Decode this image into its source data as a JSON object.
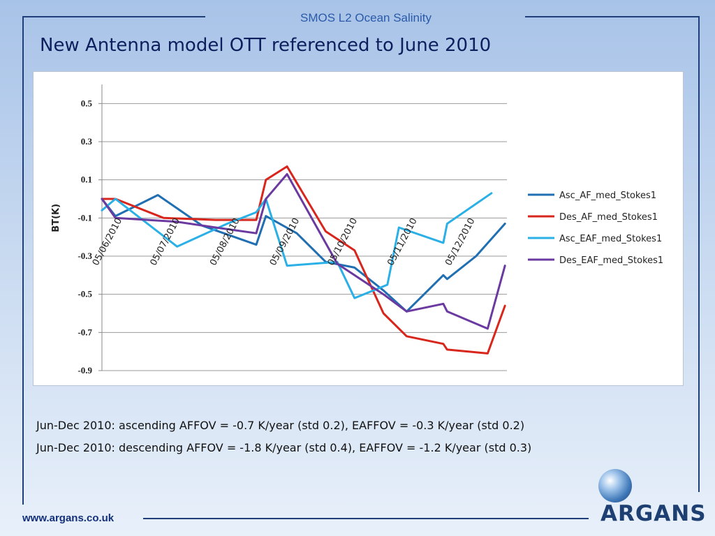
{
  "header": {
    "title": "SMOS L2 Ocean Salinity"
  },
  "slide_title": "New Antenna model OTT referenced to June 2010",
  "notes": [
    "Jun-Dec 2010: ascending AFFOV = -0.7 K/year (std 0.2), EAFFOV = -0.3 K/year (std 0.2)",
    "Jun-Dec 2010: descending AFFOV = -1.8 K/year (std 0.4), EAFFOV = -1.2 K/year (std 0.3)"
  ],
  "footer": {
    "url": "www.argans.co.uk",
    "logo_text": "ARGANS"
  },
  "chart_data": {
    "type": "line",
    "ylabel": "BT(K)",
    "ylim": [
      -0.9,
      0.6
    ],
    "yticks": [
      0.5,
      0.3,
      0.1,
      -0.1,
      -0.3,
      -0.5,
      -0.7,
      -0.9
    ],
    "ytick_labels": [
      "0.5",
      "0.3",
      "0.1",
      "-0.1",
      "-0.3",
      "-0.5",
      "-0.7",
      "-0.9"
    ],
    "xlim": [
      "2010-06-01",
      "2010-12-28"
    ],
    "xtick_dates": [
      "2010-06-05",
      "2010-07-05",
      "2010-08-05",
      "2010-09-05",
      "2010-10-05",
      "2010-11-05",
      "2010-12-05"
    ],
    "xtick_labels": [
      "05/06/2010",
      "05/07/2010",
      "05/08/2010",
      "05/09/2010",
      "05/10/2010",
      "05/11/2010",
      "05/12/2010"
    ],
    "grid": "horizontal",
    "legend_position": "right",
    "series": [
      {
        "name": "Asc_AF_med_Stokes1",
        "color": "#1f6fb2",
        "points": [
          [
            "2010-06-01",
            0.0
          ],
          [
            "2010-06-08",
            -0.09
          ],
          [
            "2010-06-30",
            0.02
          ],
          [
            "2010-07-23",
            -0.14
          ],
          [
            "2010-08-20",
            -0.24
          ],
          [
            "2010-08-25",
            -0.09
          ],
          [
            "2010-09-10",
            -0.18
          ],
          [
            "2010-09-25",
            -0.33
          ],
          [
            "2010-10-10",
            -0.36
          ],
          [
            "2010-10-25",
            -0.48
          ],
          [
            "2010-11-06",
            -0.59
          ],
          [
            "2010-11-25",
            -0.4
          ],
          [
            "2010-11-27",
            -0.42
          ],
          [
            "2010-12-12",
            -0.3
          ],
          [
            "2010-12-27",
            -0.13
          ]
        ]
      },
      {
        "name": "Des_AF_med_Stokes1",
        "color": "#d9261c",
        "points": [
          [
            "2010-06-01",
            0.0
          ],
          [
            "2010-06-08",
            0.0
          ],
          [
            "2010-07-03",
            -0.1
          ],
          [
            "2010-07-30",
            -0.11
          ],
          [
            "2010-08-20",
            -0.11
          ],
          [
            "2010-08-25",
            0.1
          ],
          [
            "2010-09-05",
            0.17
          ],
          [
            "2010-09-25",
            -0.17
          ],
          [
            "2010-10-10",
            -0.27
          ],
          [
            "2010-10-25",
            -0.6
          ],
          [
            "2010-11-06",
            -0.72
          ],
          [
            "2010-11-25",
            -0.76
          ],
          [
            "2010-11-27",
            -0.79
          ],
          [
            "2010-12-18",
            -0.81
          ],
          [
            "2010-12-27",
            -0.56
          ]
        ]
      },
      {
        "name": "Asc_EAF_med_Stokes1",
        "color": "#2ab0e6",
        "points": [
          [
            "2010-06-01",
            -0.06
          ],
          [
            "2010-06-08",
            0.0
          ],
          [
            "2010-07-10",
            -0.25
          ],
          [
            "2010-08-05",
            -0.13
          ],
          [
            "2010-08-20",
            -0.07
          ],
          [
            "2010-08-25",
            0.0
          ],
          [
            "2010-09-05",
            -0.35
          ],
          [
            "2010-10-01",
            -0.33
          ],
          [
            "2010-10-10",
            -0.52
          ],
          [
            "2010-10-27",
            -0.45
          ],
          [
            "2010-11-02",
            -0.15
          ],
          [
            "2010-11-25",
            -0.23
          ],
          [
            "2010-11-27",
            -0.13
          ],
          [
            "2010-12-20",
            0.03
          ]
        ]
      },
      {
        "name": "Des_EAF_med_Stokes1",
        "color": "#6b3aa0",
        "points": [
          [
            "2010-06-01",
            0.0
          ],
          [
            "2010-06-08",
            -0.1
          ],
          [
            "2010-07-10",
            -0.12
          ],
          [
            "2010-07-30",
            -0.15
          ],
          [
            "2010-08-20",
            -0.18
          ],
          [
            "2010-08-25",
            0.0
          ],
          [
            "2010-09-05",
            0.13
          ],
          [
            "2010-10-01",
            -0.34
          ],
          [
            "2010-10-25",
            -0.5
          ],
          [
            "2010-11-06",
            -0.59
          ],
          [
            "2010-11-25",
            -0.55
          ],
          [
            "2010-11-27",
            -0.59
          ],
          [
            "2010-12-18",
            -0.68
          ],
          [
            "2010-12-27",
            -0.35
          ]
        ]
      }
    ]
  }
}
